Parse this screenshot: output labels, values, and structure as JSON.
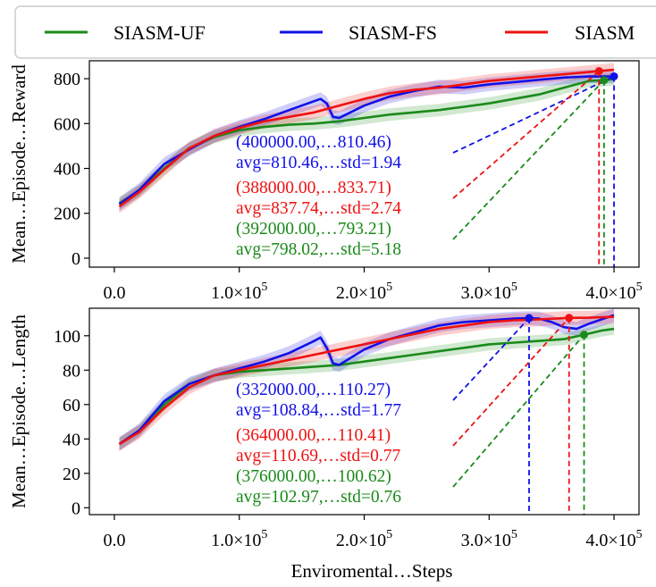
{
  "legend": {
    "entries": [
      {
        "label": "SIASM-UF",
        "color": "#1a8a1a"
      },
      {
        "label": "SIASM-FS",
        "color": "#1010e8"
      },
      {
        "label": "SIASM",
        "color": "#ee1111"
      }
    ]
  },
  "xlabel": "Enviromental…Steps",
  "chart_data": [
    {
      "type": "line",
      "title": "",
      "xlabel": "",
      "ylabel": "Mean…Episode…Reward",
      "xlim": [
        -20000,
        420000
      ],
      "ylim": [
        -40,
        880
      ],
      "xticks": [
        0,
        100000,
        200000,
        300000,
        400000
      ],
      "xtick_labels": [
        "0.0",
        "1.0×10^5",
        "2.0×10^5",
        "3.0×10^5",
        "4.0×10^5"
      ],
      "yticks": [
        0,
        200,
        400,
        600,
        800
      ],
      "ytick_labels": [
        "0",
        "200",
        "400",
        "600",
        "800"
      ],
      "grid": false,
      "legend_position": "top",
      "series": [
        {
          "name": "SIASM-UF",
          "color": "#1a8a1a",
          "band": 28,
          "x": [
            4000,
            20000,
            40000,
            60000,
            80000,
            100000,
            120000,
            140000,
            160000,
            180000,
            200000,
            220000,
            240000,
            260000,
            280000,
            300000,
            320000,
            340000,
            360000,
            380000,
            392000,
            400000
          ],
          "y": [
            245,
            300,
            400,
            490,
            540,
            570,
            585,
            595,
            600,
            610,
            625,
            640,
            650,
            660,
            675,
            690,
            710,
            730,
            760,
            790,
            793,
            798
          ]
        },
        {
          "name": "SIASM-FS",
          "color": "#1010e8",
          "band": 30,
          "x": [
            4000,
            20000,
            40000,
            60000,
            80000,
            100000,
            120000,
            140000,
            160000,
            165000,
            170000,
            175000,
            180000,
            200000,
            220000,
            240000,
            260000,
            280000,
            300000,
            320000,
            340000,
            360000,
            380000,
            400000
          ],
          "y": [
            240,
            305,
            420,
            485,
            545,
            585,
            620,
            660,
            700,
            710,
            690,
            630,
            625,
            680,
            720,
            745,
            765,
            760,
            775,
            785,
            795,
            805,
            810,
            810
          ]
        },
        {
          "name": "SIASM",
          "color": "#ee1111",
          "band": 30,
          "x": [
            4000,
            20000,
            40000,
            60000,
            80000,
            100000,
            120000,
            140000,
            160000,
            180000,
            200000,
            220000,
            240000,
            260000,
            280000,
            300000,
            320000,
            340000,
            360000,
            388000,
            400000
          ],
          "y": [
            230,
            295,
            395,
            490,
            545,
            580,
            610,
            630,
            650,
            680,
            710,
            735,
            750,
            760,
            775,
            790,
            800,
            810,
            820,
            834,
            840
          ]
        }
      ],
      "annotations": [
        {
          "color": "#1010e8",
          "line1": "(400000.00,…810.46)",
          "line2": "avg=810.46,…std=1.94",
          "x": 400000,
          "y": 810.46
        },
        {
          "color": "#ee1111",
          "line1": "(388000.00,…833.71)",
          "line2": "avg=837.74,…std=2.74",
          "x": 388000,
          "y": 833.71
        },
        {
          "color": "#1a8a1a",
          "line1": "(392000.00,…793.21)",
          "line2": "avg=798.02,…std=5.18",
          "x": 392000,
          "y": 793.21
        }
      ]
    },
    {
      "type": "line",
      "title": "",
      "xlabel": "Enviromental…Steps",
      "ylabel": "Mean…Episode…Length",
      "xlim": [
        -20000,
        420000
      ],
      "ylim": [
        -4,
        116
      ],
      "xticks": [
        0,
        100000,
        200000,
        300000,
        400000
      ],
      "xtick_labels": [
        "0.0",
        "1.0×10^5",
        "2.0×10^5",
        "3.0×10^5",
        "4.0×10^5"
      ],
      "yticks": [
        0,
        20,
        40,
        60,
        80,
        100
      ],
      "ytick_labels": [
        "0",
        "20",
        "40",
        "60",
        "80",
        "100"
      ],
      "grid": false,
      "series": [
        {
          "name": "SIASM-UF",
          "color": "#1a8a1a",
          "band": 3.5,
          "x": [
            4000,
            20000,
            40000,
            60000,
            80000,
            100000,
            120000,
            140000,
            160000,
            180000,
            200000,
            220000,
            240000,
            260000,
            280000,
            300000,
            320000,
            340000,
            360000,
            376000,
            390000,
            400000
          ],
          "y": [
            37,
            45,
            60,
            72,
            77,
            79,
            80,
            81,
            82,
            83,
            85,
            87,
            89,
            91,
            93,
            95,
            96,
            97,
            98,
            100.62,
            103,
            104
          ]
        },
        {
          "name": "SIASM-FS",
          "color": "#1010e8",
          "band": 4,
          "x": [
            4000,
            20000,
            40000,
            60000,
            80000,
            100000,
            120000,
            140000,
            160000,
            165000,
            170000,
            175000,
            180000,
            200000,
            220000,
            240000,
            260000,
            280000,
            300000,
            320000,
            332000,
            340000,
            350000,
            360000,
            370000,
            380000,
            400000
          ],
          "y": [
            37,
            45,
            62,
            72,
            77,
            81,
            85,
            90,
            97,
            99,
            93,
            84,
            83,
            92,
            98,
            102,
            106,
            108,
            109,
            110,
            110.27,
            110,
            108,
            105,
            104,
            107,
            112
          ]
        },
        {
          "name": "SIASM",
          "color": "#ee1111",
          "band": 4,
          "x": [
            4000,
            20000,
            40000,
            60000,
            80000,
            100000,
            120000,
            140000,
            160000,
            180000,
            200000,
            220000,
            240000,
            260000,
            280000,
            300000,
            320000,
            340000,
            364000,
            380000,
            400000
          ],
          "y": [
            37,
            44,
            58,
            70,
            77,
            80,
            83,
            86,
            89,
            92,
            95,
            98,
            101,
            104,
            106,
            108,
            109,
            109.5,
            110.41,
            110.5,
            111
          ]
        }
      ],
      "annotations": [
        {
          "color": "#1010e8",
          "line1": "(332000.00,…110.27)",
          "line2": "avg=108.84,…std=1.77",
          "x": 332000,
          "y": 110.27
        },
        {
          "color": "#ee1111",
          "line1": "(364000.00,…110.41)",
          "line2": "avg=110.69,…std=0.77",
          "x": 364000,
          "y": 110.41
        },
        {
          "color": "#1a8a1a",
          "line1": "(376000.00,…100.62)",
          "line2": "avg=102.97,…std=0.76",
          "x": 376000,
          "y": 100.62
        }
      ]
    }
  ]
}
